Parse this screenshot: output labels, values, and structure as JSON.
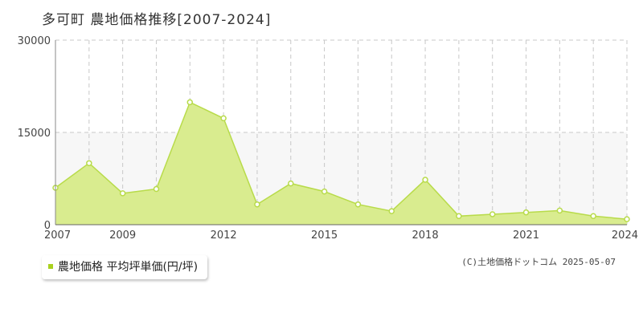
{
  "title": "多可町 農地価格推移[2007-2024]",
  "legend": {
    "label": "農地価格 平均坪単価(円/坪)"
  },
  "copyright": "(C)土地価格ドットコム 2025-05-07",
  "colors": {
    "fill": "#d9ec8f",
    "line": "#b8db4a",
    "marker": "#ffffff",
    "marker_stroke": "#b8db4a",
    "accent": "#a9d11e",
    "band": "#f7f7f7"
  },
  "chart_data": {
    "type": "area",
    "x": [
      2007,
      2008,
      2009,
      2010,
      2011,
      2012,
      2013,
      2014,
      2015,
      2016,
      2017,
      2018,
      2019,
      2020,
      2021,
      2022,
      2023,
      2024
    ],
    "series": [
      {
        "name": "農地価格 平均坪単価(円/坪)",
        "values": [
          6000,
          10000,
          5100,
          5800,
          19900,
          17300,
          3300,
          6700,
          5400,
          3300,
          2200,
          7300,
          1400,
          1700,
          2000,
          2300,
          1400,
          900
        ]
      }
    ],
    "xticks": [
      2007,
      2009,
      2012,
      2015,
      2018,
      2021,
      2024
    ],
    "yticks": [
      0,
      15000,
      30000
    ],
    "xlim": [
      2007,
      2024
    ],
    "ylim": [
      0,
      30000
    ],
    "grid": true
  }
}
